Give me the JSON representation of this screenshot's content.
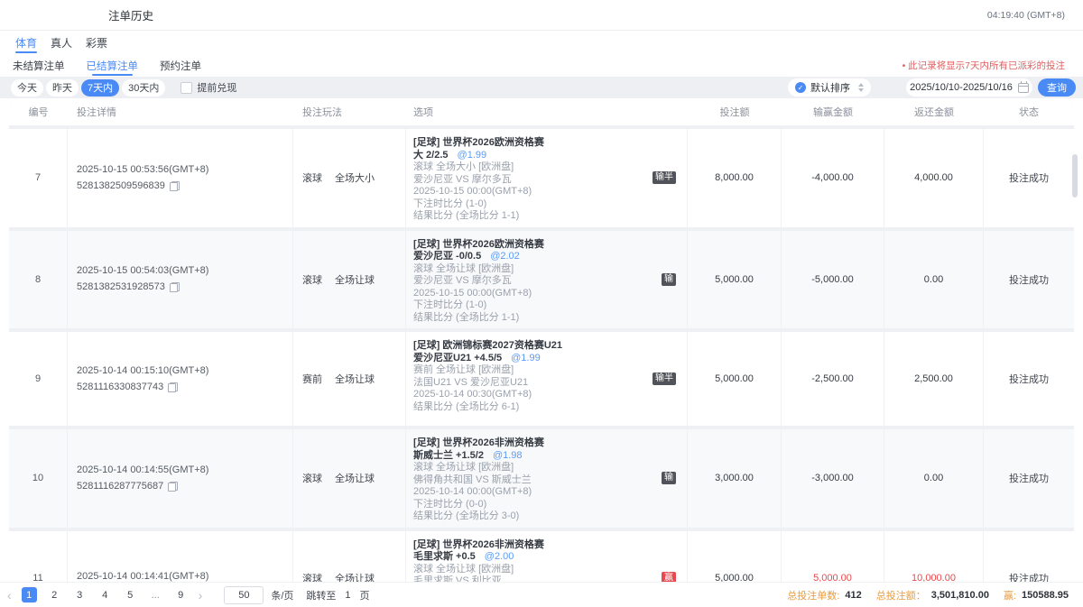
{
  "header": {
    "title": "注单历史",
    "time": "04:19:40 (GMT+8)"
  },
  "tabs": [
    {
      "label": "体育",
      "active": true
    },
    {
      "label": "真人",
      "active": false
    },
    {
      "label": "彩票",
      "active": false
    }
  ],
  "subtabs": [
    {
      "label": "未结算注单",
      "active": false
    },
    {
      "label": "已结算注单",
      "active": true
    },
    {
      "label": "预约注单",
      "active": false
    }
  ],
  "notice": "• 此记录将显示7天内所有已派彩的投注",
  "filters": {
    "quick": [
      {
        "label": "今天",
        "active": false
      },
      {
        "label": "昨天",
        "active": false
      },
      {
        "label": "7天内",
        "active": true
      },
      {
        "label": "30天内",
        "active": false
      }
    ],
    "checkbox_label": "提前兑现",
    "sort_label": "默认排序",
    "date_range": "2025/10/10-2025/10/16",
    "search_label": "查询"
  },
  "table": {
    "columns": [
      "编号",
      "投注详情",
      "投注玩法",
      "选项",
      "投注额",
      "输赢金额",
      "返还金额",
      "状态"
    ],
    "rows": [
      {
        "no": "7",
        "time": "2025-10-15 00:53:56(GMT+8)",
        "bet_id": "5281382509596839",
        "play_type": "滚球",
        "play_name": "全场大小",
        "selection": {
          "league": "[足球] 世界杯2026欧洲资格赛",
          "pick": "大 2/2.5",
          "odds": "@1.99",
          "lines": [
            "滚球  全场大小 [欧洲盘]",
            "爱沙尼亚 VS 摩尔多瓦",
            "2025-10-15 00:00(GMT+8)",
            "下注时比分 (1-0)",
            "结果比分 (全场比分 1-1)"
          ]
        },
        "badge": {
          "text": "输半",
          "type": "lose"
        },
        "amount": "8,000.00",
        "win_loss": "-4,000.00",
        "return_amount": "4,000.00",
        "profit": false,
        "status": "投注成功"
      },
      {
        "no": "8",
        "time": "2025-10-15 00:54:03(GMT+8)",
        "bet_id": "5281382531928573",
        "play_type": "滚球",
        "play_name": "全场让球",
        "selection": {
          "league": "[足球] 世界杯2026欧洲资格赛",
          "pick": "爱沙尼亚 -0/0.5",
          "odds": "@2.02",
          "lines": [
            "滚球  全场让球 [欧洲盘]",
            "爱沙尼亚 VS 摩尔多瓦",
            "2025-10-15 00:00(GMT+8)",
            "下注时比分 (1-0)",
            "结果比分 (全场比分 1-1)"
          ]
        },
        "badge": {
          "text": "输",
          "type": "lose"
        },
        "amount": "5,000.00",
        "win_loss": "-5,000.00",
        "return_amount": "0.00",
        "profit": false,
        "status": "投注成功"
      },
      {
        "no": "9",
        "time": "2025-10-14 00:15:10(GMT+8)",
        "bet_id": "5281116330837743",
        "play_type": "赛前",
        "play_name": "全场让球",
        "selection": {
          "league": "[足球] 欧洲锦标赛2027资格赛U21",
          "pick": "爱沙尼亚U21 +4.5/5",
          "odds": "@1.99",
          "lines": [
            "赛前  全场让球 [欧洲盘]",
            "法国U21 VS 爱沙尼亚U21",
            "2025-10-14 00:30(GMT+8)",
            "结果比分 (全场比分 6-1)"
          ]
        },
        "badge": {
          "text": "输半",
          "type": "lose"
        },
        "amount": "5,000.00",
        "win_loss": "-2,500.00",
        "return_amount": "2,500.00",
        "profit": false,
        "status": "投注成功"
      },
      {
        "no": "10",
        "time": "2025-10-14 00:14:55(GMT+8)",
        "bet_id": "5281116287775687",
        "play_type": "滚球",
        "play_name": "全场让球",
        "selection": {
          "league": "[足球] 世界杯2026非洲资格赛",
          "pick": "斯威士兰 +1.5/2",
          "odds": "@1.98",
          "lines": [
            "滚球  全场让球 [欧洲盘]",
            "佛得角共和国 VS 斯威士兰",
            "2025-10-14 00:00(GMT+8)",
            "下注时比分 (0-0)",
            "结果比分 (全场比分 3-0)"
          ]
        },
        "badge": {
          "text": "输",
          "type": "lose"
        },
        "amount": "3,000.00",
        "win_loss": "-3,000.00",
        "return_amount": "0.00",
        "profit": false,
        "status": "投注成功"
      },
      {
        "no": "11",
        "time": "2025-10-14 00:14:41(GMT+8)",
        "bet_id": "",
        "play_type": "滚球",
        "play_name": "全场让球",
        "selection": {
          "league": "[足球] 世界杯2026非洲资格赛",
          "pick": "毛里求斯 +0.5",
          "odds": "@2.00",
          "lines": [
            "滚球  全场让球 [欧洲盘]",
            "毛里求斯 VS 利比亚"
          ]
        },
        "badge": {
          "text": "赢",
          "type": "win"
        },
        "amount": "5,000.00",
        "win_loss": "5,000.00",
        "return_amount": "10,000.00",
        "profit": true,
        "status": "投注成功"
      }
    ]
  },
  "pagination": {
    "pages": [
      "1",
      "2",
      "3",
      "4",
      "5",
      "...",
      "9"
    ],
    "active": "1",
    "page_size": "50",
    "size_unit": "条/页",
    "jump_label": "跳转至",
    "jump_value": "1",
    "jump_unit": "页"
  },
  "summary": {
    "count_label": "总投注单数:",
    "count": "412",
    "amount_label": "总投注额：",
    "amount": "3,501,810.00",
    "win_label": "赢:",
    "win": "150588.95"
  },
  "colors": {
    "accent": "#4a8af4",
    "win_red": "#e8494e",
    "badge_dark": "#505359",
    "notice_red": "#e06060",
    "summary_orange": "#e89c3f"
  }
}
